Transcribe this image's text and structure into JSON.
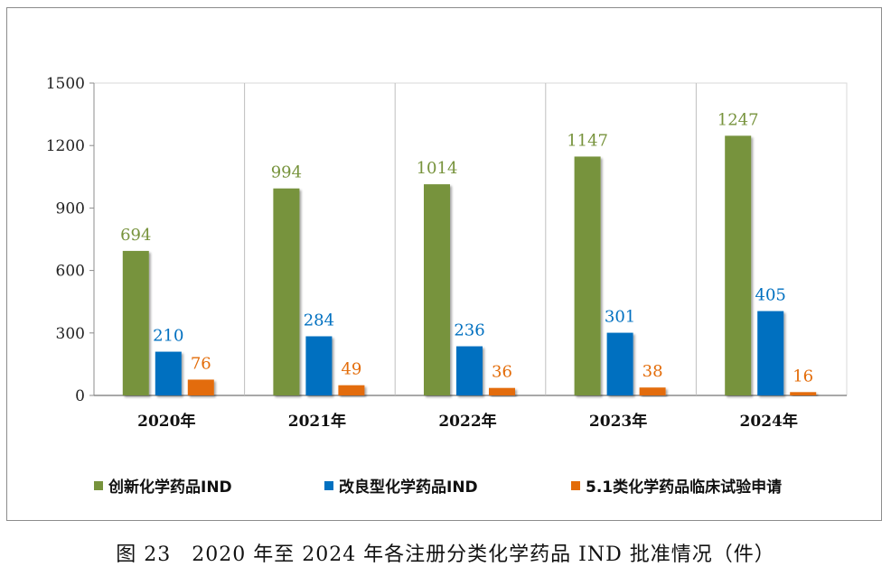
{
  "chart_data": {
    "type": "bar",
    "categories": [
      "2020年",
      "2021年",
      "2022年",
      "2023年",
      "2024年"
    ],
    "series": [
      {
        "name": "创新化学药品IND",
        "values": [
          694,
          994,
          1014,
          1147,
          1247
        ],
        "color": "#77933c"
      },
      {
        "name": "改良型化学药品IND",
        "values": [
          210,
          284,
          236,
          301,
          405
        ],
        "color": "#0070c0"
      },
      {
        "name": "5.1类化学药品临床试验申请",
        "values": [
          76,
          49,
          36,
          38,
          16
        ],
        "color": "#e36c09"
      }
    ],
    "ylim": [
      0,
      1500
    ],
    "yticks": [
      "0",
      "300",
      "600",
      "900",
      "1200",
      "1500"
    ],
    "legend_position": "bottom",
    "grid": "vertical-category-separators"
  },
  "caption": "图 23　2020 年至 2024 年各注册分类化学药品 IND 批准情况（件）"
}
